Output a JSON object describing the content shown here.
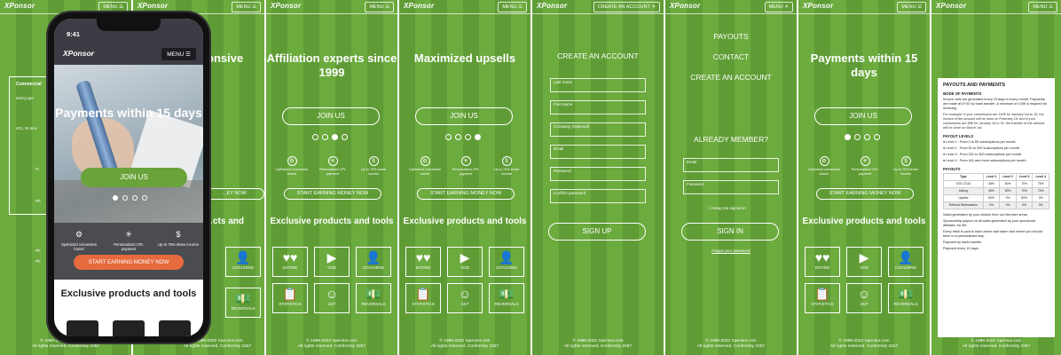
{
  "brand": {
    "logo": "XPonsor",
    "menu": "MENU",
    "menu_x": "MENU ✕",
    "menu_create": "CREATE AN ACCOUNT ✕",
    "menu_bars": "MENU ☰"
  },
  "phone": {
    "time": "9:41",
    "logo": "XPonsor",
    "menu": "MENU ☰",
    "headline": "Payments within 15 days",
    "join": "JOIN US",
    "features": [
      "Optimized conversion funnel",
      "Personalized CPL payment",
      "Up to 75% share income"
    ],
    "earn": "START EARNING MONEY NOW",
    "exclusive": "Exclusive products and tools"
  },
  "panel1": {
    "heading": "…onsive",
    "sub": "Commercial",
    "fields": [
      "sency.xpo",
      "401, St-nice",
      "Fi",
      "Ph",
      "Pl",
      "Ph",
      "Ph"
    ],
    "join": "JOIN US",
    "earn": "…EY NOW",
    "exclusive": "…cts and"
  },
  "panel2": {
    "heading": "Affiliation experts since 1999",
    "join": "JOIN US"
  },
  "panel3": {
    "heading": "Maximized upsells",
    "join": "JOIN US"
  },
  "panel6": {
    "heading": "Payments within 15 days",
    "join": "JOIN US"
  },
  "common": {
    "features": [
      "Optimized conversion funnel",
      "Personalized CPL payment",
      "Up to 75% share income"
    ],
    "earn": "START EARNING MONEY NOW",
    "exclusive": "Exclusive products and tools",
    "tiles": [
      "DATING",
      "VOD",
      "COACHING",
      "STATISTICS",
      "24/7",
      "REVERSALS"
    ],
    "footer1": "© 1999-2022 Xpensor.com",
    "footer2": "All rights reserved. Conformity 2257"
  },
  "signup": {
    "title": "CREATE AN ACCOUNT",
    "fields": [
      "Last name",
      "First name",
      "Company (Optional)",
      "Email",
      "Password",
      "Confirm password"
    ],
    "button": "SIGN UP"
  },
  "menu_panel": {
    "items": [
      "PAYOUTS",
      "CONTACT",
      "CREATE AN ACCOUNT"
    ],
    "member": "ALREADY MEMBER?",
    "fields": [
      "Email",
      "Password"
    ],
    "remember": "Keep me signed in",
    "button": "SIGN IN",
    "forgot": "Forgot your password"
  },
  "doc": {
    "title": "PAYOUTS AND PAYMENTS",
    "mode_title": "MODE OF PAYMENTS",
    "mode_text": "Invoice calls are generated every 15 days in every month. Payments are made at D+30 by bank transfer. A minimum of 100€ is required for invoicing.",
    "example": "For example: If your commission are 110€ for January 1st to 15, the invoice of the amount will be done on February 15. And if your commission are 85€ for January 16 to 31, the transfer of the amount will be done on March 1st.",
    "levels_title": "PAYOUT LEVELS",
    "levels": [
      "● Level 1 : From 0 to 50 subscriptions per month.",
      "● Level 2 : From 51 to 200 subscriptions per month.",
      "● Level 3 : From 201 to 300 subscriptions per month.",
      "● Level 4 : From 401 and more subscriptions per month."
    ],
    "payouts_title": "PAYOUTS",
    "table_head": [
      "Type",
      "Level 1",
      "Level 2",
      "Level 3",
      "Level 4"
    ],
    "table_rows": [
      [
        "VOD CS10",
        "45%",
        "50%",
        "70%",
        "75%"
      ],
      [
        "Dating",
        "45%",
        "50%",
        "70%",
        "75%"
      ],
      [
        "Upsells",
        "50%",
        "0%",
        "60%",
        "0%"
      ],
      [
        "Referral Webmasters",
        "0%",
        "0%",
        "0%",
        "0%"
      ]
    ],
    "notes": [
      "Sales generated by your visitors from our Member areas.",
      "Sponsorship payout on all sales generated by your sponsored affiliates, for life.",
      "Every rebill is paid to each active sale taken and where you should them in a personalized way.",
      "Payment by bank transfer.",
      "Payment every 15 days."
    ]
  }
}
